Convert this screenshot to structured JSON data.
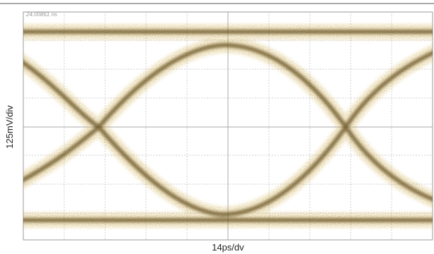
{
  "screen": {
    "timestamp": "24.00861 ns",
    "y_label": "125mV/div",
    "x_label": "14ps/dv"
  }
}
